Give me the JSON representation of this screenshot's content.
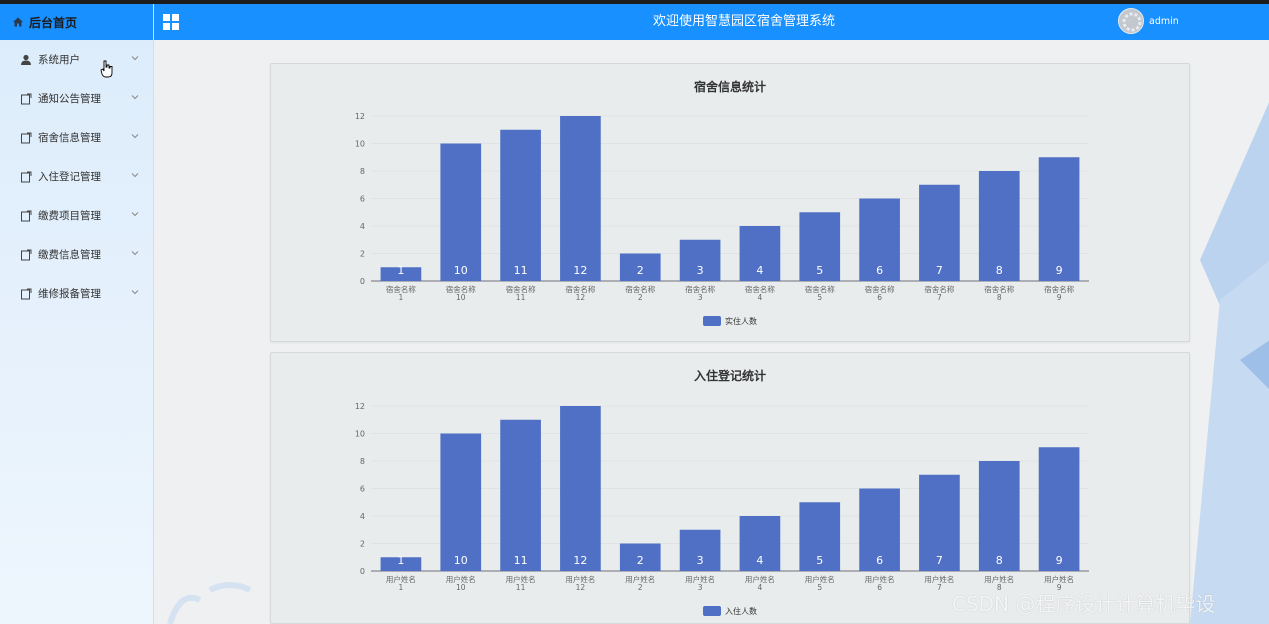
{
  "sidebar": {
    "head_label": "后台首页",
    "items": [
      {
        "label": "系统用户",
        "icon": "user-icon"
      },
      {
        "label": "通知公告管理",
        "icon": "doc-icon"
      },
      {
        "label": "宿舍信息管理",
        "icon": "doc-icon"
      },
      {
        "label": "入住登记管理",
        "icon": "doc-icon"
      },
      {
        "label": "缴费项目管理",
        "icon": "doc-icon"
      },
      {
        "label": "缴费信息管理",
        "icon": "doc-icon"
      },
      {
        "label": "维修报备管理",
        "icon": "doc-icon"
      }
    ]
  },
  "header": {
    "title": "欢迎使用智慧园区宿舍管理系统",
    "username": "admin",
    "menu_icon": "grid-icon"
  },
  "colors": {
    "accent": "#1890ff",
    "bar": "#5070c6",
    "background": "#eef0f1"
  },
  "watermark": "CSDN @程序设计计算机毕设",
  "chart_data": [
    {
      "type": "bar",
      "title": "宿舍信息统计",
      "categories": [
        "宿舍名称\n1",
        "宿舍名称\n10",
        "宿舍名称\n11",
        "宿舍名称\n12",
        "宿舍名称\n2",
        "宿舍名称\n3",
        "宿舍名称\n4",
        "宿舍名称\n5",
        "宿舍名称\n6",
        "宿舍名称\n7",
        "宿舍名称\n8",
        "宿舍名称\n9"
      ],
      "series": [
        {
          "name": "实住人数",
          "values": [
            1,
            10,
            11,
            12,
            2,
            3,
            4,
            5,
            6,
            7,
            8,
            9
          ]
        }
      ],
      "yticks": [
        "0",
        "2",
        "4",
        "6",
        "8",
        "10",
        "12"
      ],
      "ylim": [
        0,
        12
      ],
      "legend_position": "bottom",
      "grid": true,
      "data_labels": true
    },
    {
      "type": "bar",
      "title": "入住登记统计",
      "categories": [
        "用户姓名\n1",
        "用户姓名\n10",
        "用户姓名\n11",
        "用户姓名\n12",
        "用户姓名\n2",
        "用户姓名\n3",
        "用户姓名\n4",
        "用户姓名\n5",
        "用户姓名\n6",
        "用户姓名\n7",
        "用户姓名\n8",
        "用户姓名\n9"
      ],
      "series": [
        {
          "name": "入住人数",
          "values": [
            1,
            10,
            11,
            12,
            2,
            3,
            4,
            5,
            6,
            7,
            8,
            9
          ]
        }
      ],
      "yticks": [
        "0",
        "2",
        "4",
        "6",
        "8",
        "10",
        "12"
      ],
      "ylim": [
        0,
        12
      ],
      "legend_position": "bottom",
      "grid": true,
      "data_labels": true
    }
  ]
}
